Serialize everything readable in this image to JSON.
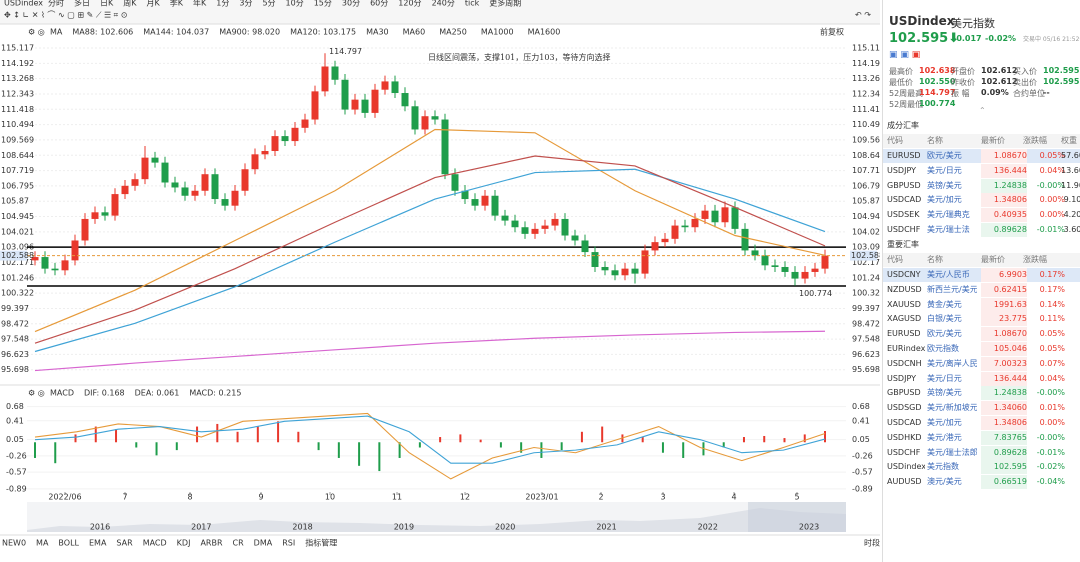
{
  "toolbar": {
    "symbol": "USDindex",
    "periods": [
      "分时",
      "多日",
      "日K",
      "周K",
      "月K",
      "季K",
      "年K",
      "1分",
      "3分",
      "5分",
      "10分",
      "15分",
      "30分",
      "60分",
      "120分",
      "240分",
      "tick",
      "更多周期"
    ],
    "active": 2
  },
  "chart_data": [
    {
      "type": "candlestick",
      "indicator": "MA",
      "adjust": "前复权",
      "annotation": "日线区间震荡，支撑101，压力103，等待方向选择",
      "up_color": "#e8382c",
      "down_color": "#1f9d4b",
      "ohlc": [
        [
          102.3,
          102.85,
          102.0,
          102.5
        ],
        [
          102.5,
          102.85,
          101.5,
          101.8
        ],
        [
          101.8,
          102.15,
          101.4,
          101.7
        ],
        [
          101.7,
          102.65,
          101.4,
          102.3
        ],
        [
          102.3,
          103.85,
          102.0,
          103.5
        ],
        [
          103.5,
          105.15,
          103.2,
          104.8
        ],
        [
          104.8,
          105.55,
          104.5,
          105.2
        ],
        [
          105.2,
          105.55,
          104.7,
          105.0
        ],
        [
          105.0,
          106.65,
          104.7,
          106.3
        ],
        [
          106.3,
          107.15,
          106.0,
          106.8
        ],
        [
          106.8,
          107.55,
          106.5,
          107.2
        ],
        [
          107.2,
          109.2,
          106.9,
          108.5
        ],
        [
          108.5,
          108.85,
          107.9,
          108.2
        ],
        [
          108.2,
          108.55,
          106.7,
          107.0
        ],
        [
          107.0,
          107.35,
          106.4,
          106.7
        ],
        [
          106.7,
          107.05,
          105.9,
          106.2
        ],
        [
          106.2,
          106.85,
          105.9,
          106.5
        ],
        [
          106.5,
          107.85,
          106.2,
          107.5
        ],
        [
          107.5,
          107.85,
          105.7,
          106.0
        ],
        [
          106.0,
          106.35,
          105.3,
          105.6
        ],
        [
          105.6,
          106.85,
          105.3,
          106.5
        ],
        [
          106.5,
          108.15,
          106.2,
          107.8
        ],
        [
          107.8,
          109.05,
          107.5,
          108.7
        ],
        [
          108.7,
          109.25,
          108.4,
          108.9
        ],
        [
          108.9,
          110.15,
          108.6,
          109.8
        ],
        [
          109.8,
          110.15,
          109.2,
          109.5
        ],
        [
          109.5,
          110.65,
          109.2,
          110.3
        ],
        [
          110.3,
          111.15,
          110.0,
          110.8
        ],
        [
          110.8,
          112.85,
          110.5,
          112.5
        ],
        [
          112.5,
          114.797,
          112.2,
          114.0
        ],
        [
          114.0,
          114.35,
          112.9,
          113.2
        ],
        [
          113.2,
          113.55,
          111.1,
          111.4
        ],
        [
          111.4,
          112.35,
          111.1,
          112.0
        ],
        [
          112.0,
          112.35,
          110.9,
          111.2
        ],
        [
          111.2,
          112.95,
          110.9,
          112.6
        ],
        [
          112.6,
          113.45,
          112.3,
          113.1
        ],
        [
          113.1,
          113.45,
          112.1,
          112.4
        ],
        [
          112.4,
          112.75,
          111.3,
          111.6
        ],
        [
          111.6,
          111.95,
          109.9,
          110.2
        ],
        [
          110.2,
          111.35,
          109.9,
          111.0
        ],
        [
          111.0,
          111.35,
          110.5,
          110.8
        ],
        [
          110.8,
          111.15,
          107.2,
          107.5
        ],
        [
          107.5,
          107.85,
          106.2,
          106.5
        ],
        [
          106.5,
          106.85,
          105.7,
          106.0
        ],
        [
          106.0,
          106.35,
          105.3,
          105.6
        ],
        [
          105.6,
          106.55,
          105.3,
          106.2
        ],
        [
          106.2,
          106.55,
          104.7,
          105.0
        ],
        [
          105.0,
          105.35,
          104.4,
          104.7
        ],
        [
          104.7,
          105.05,
          104.0,
          104.3
        ],
        [
          104.3,
          104.65,
          103.6,
          103.9
        ],
        [
          103.9,
          104.55,
          103.6,
          104.2
        ],
        [
          104.2,
          104.75,
          103.9,
          104.4
        ],
        [
          104.4,
          105.15,
          104.1,
          104.8
        ],
        [
          104.8,
          105.15,
          103.5,
          103.8
        ],
        [
          103.8,
          104.15,
          103.2,
          103.5
        ],
        [
          103.5,
          103.85,
          102.5,
          102.8
        ],
        [
          102.8,
          103.15,
          101.6,
          101.9
        ],
        [
          101.9,
          102.25,
          101.4,
          101.7
        ],
        [
          101.7,
          102.05,
          101.1,
          101.4
        ],
        [
          101.4,
          102.15,
          101.1,
          101.8
        ],
        [
          101.8,
          102.15,
          100.9,
          101.5
        ],
        [
          101.5,
          103.25,
          101.2,
          102.9
        ],
        [
          102.9,
          103.75,
          102.6,
          103.4
        ],
        [
          103.4,
          103.95,
          103.1,
          103.6
        ],
        [
          103.6,
          104.75,
          103.3,
          104.4
        ],
        [
          104.4,
          104.75,
          104.0,
          104.3
        ],
        [
          104.3,
          105.15,
          104.0,
          104.8
        ],
        [
          104.8,
          105.65,
          104.5,
          105.3
        ],
        [
          105.3,
          105.65,
          104.3,
          104.6
        ],
        [
          104.6,
          105.85,
          104.3,
          105.5
        ],
        [
          105.5,
          105.85,
          103.9,
          104.2
        ],
        [
          104.2,
          104.55,
          102.6,
          102.9
        ],
        [
          102.9,
          103.25,
          102.3,
          102.6
        ],
        [
          102.6,
          102.95,
          101.7,
          102.0
        ],
        [
          102.0,
          102.35,
          101.6,
          101.9
        ],
        [
          101.9,
          102.25,
          101.3,
          101.6
        ],
        [
          101.6,
          101.95,
          100.774,
          101.2
        ],
        [
          101.2,
          101.95,
          100.9,
          101.6
        ],
        [
          101.6,
          102.15,
          101.3,
          101.8
        ],
        [
          101.8,
          102.95,
          101.5,
          102.588
        ]
      ],
      "ma_x": [
        0,
        10,
        20,
        30,
        40,
        50,
        60,
        70,
        79
      ],
      "ma_series": [
        {
          "name": "MA88: 102.606",
          "color": "#e69a3a",
          "values": [
            98.0,
            100.5,
            103.5,
            106.5,
            110.2,
            110.0,
            106.5,
            103.8,
            102.606
          ]
        },
        {
          "name": "MA144: 104.037",
          "color": "#3fa3d6",
          "values": [
            96.8,
            98.5,
            100.7,
            103.4,
            106.0,
            107.6,
            107.8,
            106.0,
            104.037
          ]
        },
        {
          "name": "MA900: 98.020",
          "color": "#d766d0",
          "values": [
            95.65,
            96.1,
            96.5,
            96.9,
            97.3,
            97.6,
            97.8,
            97.95,
            98.02
          ]
        },
        {
          "name": "MA120: 103.175",
          "color": "#c0504d",
          "values": [
            97.3,
            99.3,
            101.8,
            104.6,
            107.3,
            108.6,
            108.0,
            105.5,
            103.175
          ]
        }
      ],
      "ma_off": [
        "MA30",
        "MA60",
        "MA250",
        "MA1000",
        "MA1600"
      ],
      "hlines": [
        103.1,
        100.75
      ],
      "last_price": 102.588,
      "ylim": [
        95.2,
        115.6
      ],
      "yticks": [
        115.117,
        114.192,
        113.268,
        112.343,
        111.418,
        110.494,
        109.569,
        108.644,
        107.719,
        106.795,
        105.87,
        104.945,
        104.021,
        103.096,
        102.171,
        101.246,
        100.322,
        99.397,
        98.472,
        97.548,
        96.623,
        95.698
      ]
    },
    {
      "type": "macd",
      "title": "MACD",
      "bars": {
        "name": "MACD: 0.215",
        "color": "#d766d0",
        "values": [
          -0.3,
          -0.4,
          0.15,
          0.3,
          0.25,
          -0.1,
          -0.25,
          -0.15,
          0.3,
          0.35,
          0.2,
          0.3,
          0.4,
          0.2,
          -0.15,
          -0.3,
          -0.45,
          -0.55,
          -0.3,
          -0.1,
          0.1,
          0.15,
          0.05,
          -0.1,
          -0.2,
          -0.3,
          -0.15,
          0.2,
          0.3,
          0.15,
          0.1,
          -0.2,
          -0.3,
          -0.25,
          -0.1,
          0.1,
          0.12,
          0.08,
          0.15,
          0.215
        ]
      },
      "series": [
        {
          "name": "DIF: 0.168",
          "color": "#e69a3a",
          "values": [
            0.1,
            0.2,
            0.35,
            0.3,
            0.1,
            0.4,
            0.45,
            0.5,
            0.55,
            -0.2,
            -0.7,
            -0.3,
            -0.1,
            -0.2,
            0.05,
            0.3,
            -0.1,
            -0.35,
            -0.1,
            0.168
          ]
        },
        {
          "name": "DEA: 0.061",
          "color": "#3fa3d6",
          "values": [
            0.05,
            0.1,
            0.25,
            0.3,
            0.2,
            0.25,
            0.4,
            0.45,
            0.5,
            0.2,
            -0.4,
            -0.4,
            -0.2,
            -0.15,
            -0.05,
            0.2,
            0.05,
            -0.2,
            -0.15,
            0.061
          ]
        }
      ],
      "ylim": [
        -0.95,
        0.75
      ],
      "yticks": [
        0.68,
        0.41,
        0.05,
        -0.26,
        -0.57,
        -0.89
      ],
      "xticks": [
        {
          "value": 3,
          "label": "2022/06"
        },
        {
          "value": 9,
          "label": "7"
        },
        {
          "value": 15.5,
          "label": "8"
        },
        {
          "value": 22.6,
          "label": "9"
        },
        {
          "value": 29.5,
          "label": "10"
        },
        {
          "value": 36.2,
          "label": "11"
        },
        {
          "value": 43,
          "label": "12"
        },
        {
          "value": 50.7,
          "label": "2023/01"
        },
        {
          "value": 56.6,
          "label": "2"
        },
        {
          "value": 62.8,
          "label": "3"
        },
        {
          "value": 69.9,
          "label": "4"
        },
        {
          "value": 76.2,
          "label": "5"
        }
      ]
    }
  ],
  "navigator": {
    "years": [
      "2016",
      "2017",
      "2018",
      "2019",
      "2020",
      "2021",
      "2022",
      "2023"
    ]
  },
  "bottom_bar": {
    "indicators": [
      "NEW0",
      "MA",
      "BOLL",
      "EMA",
      "SAR",
      "MACD",
      "KDJ",
      "ARBR",
      "CR",
      "DMA",
      "RSI"
    ],
    "active": [
      "MA",
      "MACD"
    ],
    "manage": "指标管理",
    "period": "时段"
  },
  "panel": {
    "symbol": "USDindex",
    "name": "美元指数",
    "price": "102.595",
    "change": "-0.017",
    "change_pct": "-0.02%",
    "status": "交易中 05/16 21:52(美东",
    "stats": [
      [
        {
          "label": "最高价",
          "value": "102.638",
          "tone": "up"
        },
        {
          "label": "开盘价",
          "value": "102.612",
          "tone": "flat"
        },
        {
          "label": "买入价",
          "value": "102.595",
          "tone": "down"
        }
      ],
      [
        {
          "label": "最低价",
          "value": "102.550",
          "tone": "down"
        },
        {
          "label": "昨收价",
          "value": "102.612",
          "tone": "flat"
        },
        {
          "label": "卖出价",
          "value": "102.595",
          "tone": "down"
        }
      ],
      [
        {
          "label": "52周最高",
          "value": "114.797",
          "tone": "up"
        },
        {
          "label": "振 幅",
          "value": "0.09%",
          "tone": "flat"
        },
        {
          "label": "合约单位",
          "value": "--",
          "tone": "flat"
        }
      ],
      [
        {
          "label": "52周最低",
          "value": "100.774",
          "tone": "down"
        }
      ]
    ],
    "components": {
      "title": "成分汇率",
      "columns": [
        "代码",
        "名称",
        "最新价",
        "涨跌幅",
        "权重"
      ],
      "selected": 0,
      "rows": [
        [
          "EURUSD",
          "欧元/美元",
          "1.08670",
          "0.05%",
          "57.60%"
        ],
        [
          "USDJPY",
          "美元/日元",
          "136.444",
          "0.04%",
          "13.60%"
        ],
        [
          "GBPUSD",
          "英镑/美元",
          "1.24838",
          "-0.00%",
          "11.90%"
        ],
        [
          "USDCAD",
          "美元/加元",
          "1.34806",
          "0.00%",
          "9.10%"
        ],
        [
          "USDSEK",
          "美元/瑞典克",
          "0.40935",
          "0.00%",
          "4.20%"
        ],
        [
          "USDCHF",
          "美元/瑞士法",
          "0.89628",
          "-0.01%",
          "3.60%"
        ]
      ]
    },
    "important": {
      "title": "重要汇率",
      "columns": [
        "代码",
        "名称",
        "最新价",
        "涨跌幅"
      ],
      "selected": 0,
      "rows": [
        [
          "USDCNY",
          "美元/人民币",
          "6.9903",
          "0.17%"
        ],
        [
          "NZDUSD",
          "新西兰元/美元",
          "0.62415",
          "0.17%"
        ],
        [
          "XAUUSD",
          "黄金/美元",
          "1991.63",
          "0.14%"
        ],
        [
          "XAGUSD",
          "白银/美元",
          "23.775",
          "0.11%"
        ],
        [
          "EURUSD",
          "欧元/美元",
          "1.08670",
          "0.05%"
        ],
        [
          "EURindex",
          "欧元指数",
          "105.046",
          "0.05%"
        ],
        [
          "USDCNH",
          "美元/离岸人民币",
          "7.00323",
          "0.07%"
        ],
        [
          "USDJPY",
          "美元/日元",
          "136.444",
          "0.04%"
        ],
        [
          "GBPUSD",
          "英镑/美元",
          "1.24838",
          "-0.00%"
        ],
        [
          "USDSGD",
          "美元/新加坡元",
          "1.34060",
          "0.01%"
        ],
        [
          "USDCAD",
          "美元/加元",
          "1.34806",
          "0.00%"
        ],
        [
          "USDHKD",
          "美元/港元",
          "7.83765",
          "-0.00%"
        ],
        [
          "USDCHF",
          "美元/瑞士法郎",
          "0.89628",
          "-0.01%"
        ],
        [
          "USDindex",
          "美元指数",
          "102.595",
          "-0.02%"
        ],
        [
          "AUDUSD",
          "澳元/美元",
          "0.66519",
          "-0.04%"
        ]
      ]
    }
  }
}
